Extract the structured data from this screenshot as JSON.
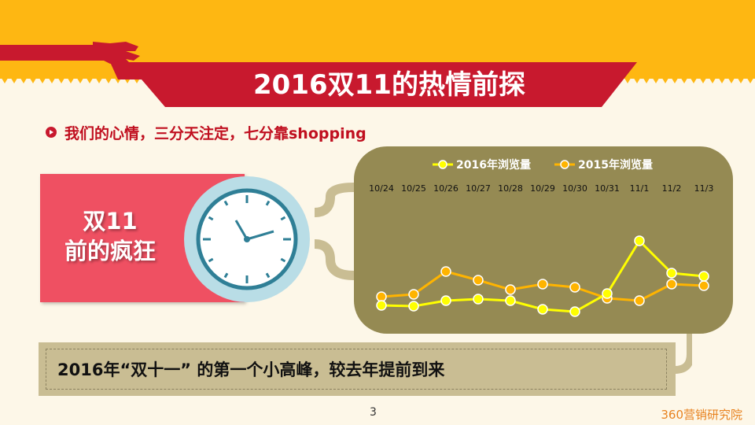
{
  "header": {
    "title": "2016双11的热情前探"
  },
  "subtitle": "我们的心情，三分天注定，七分靠shopping",
  "side_label": {
    "line1": "双11",
    "line2": "前的疯狂"
  },
  "note": "2016年“双十一” 的第一个小高峰，较去年提前到来",
  "footer": {
    "page": "3",
    "brand": "360营销研究院"
  },
  "colors": {
    "top_band": "#feb712",
    "red": "#c8192e",
    "panel": "#958a53",
    "series_2016": "#ffff00",
    "series_2015": "#ffb400"
  },
  "chart_data": {
    "type": "line",
    "title": "",
    "categories": [
      "10/24",
      "10/25",
      "10/26",
      "10/27",
      "10/28",
      "10/29",
      "10/30",
      "10/31",
      "11/1",
      "11/2",
      "11/3"
    ],
    "series": [
      {
        "name": "2016年浏览量",
        "color": "#ffff00",
        "values": [
          22,
          21,
          28,
          30,
          28,
          17,
          14,
          37,
          104,
          63,
          59
        ]
      },
      {
        "name": "2015年浏览量",
        "color": "#ffb400",
        "values": [
          33,
          36,
          65,
          54,
          42,
          49,
          45,
          31,
          28,
          49,
          47
        ]
      }
    ],
    "yaxis_visible": false,
    "grid": false,
    "legend": "top",
    "xaxis_position": "top"
  }
}
